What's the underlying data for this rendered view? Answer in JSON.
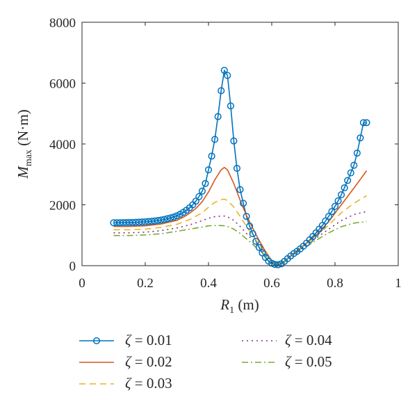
{
  "chart_data": {
    "type": "line",
    "xlabel": {
      "main": "R",
      "sub": "1",
      "unit": " (m)"
    },
    "ylabel": {
      "main": "M",
      "sub": "max",
      "unit": " (N·m)"
    },
    "xlim": [
      0,
      1
    ],
    "ylim": [
      0,
      8000
    ],
    "xticks": [
      0,
      0.2,
      0.4,
      0.6,
      0.8,
      1
    ],
    "xtick_labels": [
      "0",
      "0.2",
      "0.4",
      "0.6",
      "0.8",
      "1"
    ],
    "yticks": [
      0,
      2000,
      4000,
      6000,
      8000
    ],
    "ytick_labels": [
      "0",
      "2000",
      "4000",
      "6000",
      "8000"
    ],
    "grid": false,
    "legend_position": "bottom",
    "series": [
      {
        "name": "ζ = 0.01",
        "symbol": "ζ",
        "value_text": " = 0.01",
        "color": "#0072BD",
        "dash": "",
        "markers": true,
        "x": [
          0.1,
          0.11,
          0.12,
          0.13,
          0.14,
          0.15,
          0.16,
          0.17,
          0.18,
          0.19,
          0.2,
          0.21,
          0.22,
          0.23,
          0.24,
          0.25,
          0.26,
          0.27,
          0.28,
          0.29,
          0.3,
          0.31,
          0.32,
          0.33,
          0.34,
          0.35,
          0.36,
          0.37,
          0.38,
          0.39,
          0.4,
          0.41,
          0.42,
          0.43,
          0.44,
          0.45,
          0.46,
          0.47,
          0.48,
          0.49,
          0.5,
          0.51,
          0.52,
          0.53,
          0.54,
          0.55,
          0.56,
          0.57,
          0.58,
          0.59,
          0.6,
          0.61,
          0.62,
          0.63,
          0.64,
          0.65,
          0.66,
          0.67,
          0.68,
          0.69,
          0.7,
          0.71,
          0.72,
          0.73,
          0.74,
          0.75,
          0.76,
          0.77,
          0.78,
          0.79,
          0.8,
          0.81,
          0.82,
          0.83,
          0.84,
          0.85,
          0.86,
          0.87,
          0.88,
          0.89,
          0.9
        ],
        "y": [
          1410,
          1410,
          1410,
          1415,
          1415,
          1420,
          1420,
          1425,
          1430,
          1435,
          1440,
          1450,
          1460,
          1470,
          1485,
          1500,
          1520,
          1545,
          1570,
          1600,
          1640,
          1690,
          1750,
          1820,
          1900,
          2000,
          2120,
          2270,
          2450,
          2700,
          3150,
          3600,
          4150,
          4900,
          5750,
          6420,
          6250,
          5250,
          4100,
          3200,
          2500,
          2050,
          1620,
          1300,
          1050,
          800,
          600,
          420,
          270,
          150,
          80,
          40,
          30,
          60,
          140,
          230,
          320,
          400,
          470,
          550,
          640,
          740,
          850,
          960,
          1080,
          1200,
          1320,
          1470,
          1620,
          1780,
          1950,
          2130,
          2330,
          2560,
          2800,
          3050,
          3300,
          3700,
          4200,
          4700,
          4700
        ]
      },
      {
        "name": "ζ = 0.02",
        "symbol": "ζ",
        "value_text": " = 0.02",
        "color": "#D95319",
        "dash": "",
        "markers": false,
        "x": [
          0.1,
          0.15,
          0.2,
          0.25,
          0.3,
          0.32,
          0.34,
          0.36,
          0.38,
          0.4,
          0.42,
          0.44,
          0.45,
          0.46,
          0.48,
          0.5,
          0.52,
          0.54,
          0.56,
          0.58,
          0.6,
          0.62,
          0.64,
          0.66,
          0.7,
          0.74,
          0.78,
          0.82,
          0.86,
          0.9
        ],
        "y": [
          1290,
          1290,
          1310,
          1370,
          1490,
          1590,
          1720,
          1880,
          2100,
          2420,
          2820,
          3150,
          3230,
          3150,
          2700,
          2150,
          1650,
          1230,
          830,
          470,
          170,
          40,
          120,
          330,
          660,
          1000,
          1450,
          2000,
          2550,
          3120
        ]
      },
      {
        "name": "ζ = 0.03",
        "symbol": "ζ",
        "value_text": " = 0.03",
        "color": "#EDB120",
        "dash": "9 6",
        "markers": false,
        "x": [
          0.1,
          0.15,
          0.2,
          0.25,
          0.3,
          0.34,
          0.38,
          0.4,
          0.42,
          0.44,
          0.45,
          0.46,
          0.48,
          0.5,
          0.52,
          0.54,
          0.56,
          0.58,
          0.6,
          0.62,
          0.64,
          0.66,
          0.7,
          0.74,
          0.78,
          0.82,
          0.86,
          0.9
        ],
        "y": [
          1180,
          1180,
          1200,
          1260,
          1360,
          1510,
          1740,
          1920,
          2080,
          2170,
          2190,
          2140,
          1930,
          1620,
          1290,
          980,
          700,
          420,
          160,
          40,
          130,
          330,
          640,
          960,
          1340,
          1740,
          2050,
          2300
        ]
      },
      {
        "name": "ζ = 0.04",
        "symbol": "ζ",
        "value_text": " = 0.04",
        "color": "#7E2F8E",
        "dash": "2 5",
        "markers": false,
        "x": [
          0.1,
          0.15,
          0.2,
          0.25,
          0.3,
          0.34,
          0.38,
          0.4,
          0.42,
          0.44,
          0.45,
          0.46,
          0.48,
          0.5,
          0.52,
          0.54,
          0.56,
          0.58,
          0.6,
          0.62,
          0.64,
          0.66,
          0.7,
          0.74,
          0.78,
          0.82,
          0.86,
          0.9
        ],
        "y": [
          1080,
          1080,
          1100,
          1150,
          1240,
          1340,
          1480,
          1560,
          1610,
          1630,
          1630,
          1610,
          1490,
          1290,
          1060,
          830,
          600,
          380,
          160,
          50,
          130,
          320,
          600,
          900,
          1200,
          1480,
          1680,
          1780
        ]
      },
      {
        "name": "ζ = 0.05",
        "symbol": "ζ",
        "value_text": " = 0.05",
        "color": "#77AC30",
        "dash": "9 4 2 4",
        "markers": false,
        "x": [
          0.1,
          0.15,
          0.2,
          0.25,
          0.3,
          0.34,
          0.38,
          0.4,
          0.42,
          0.44,
          0.45,
          0.46,
          0.48,
          0.5,
          0.52,
          0.54,
          0.56,
          0.58,
          0.6,
          0.62,
          0.64,
          0.66,
          0.7,
          0.74,
          0.78,
          0.82,
          0.86,
          0.9
        ],
        "y": [
          990,
          990,
          1010,
          1050,
          1130,
          1200,
          1270,
          1310,
          1320,
          1320,
          1310,
          1290,
          1200,
          1060,
          880,
          700,
          510,
          330,
          150,
          50,
          130,
          310,
          560,
          830,
          1080,
          1280,
          1400,
          1450
        ]
      }
    ]
  }
}
